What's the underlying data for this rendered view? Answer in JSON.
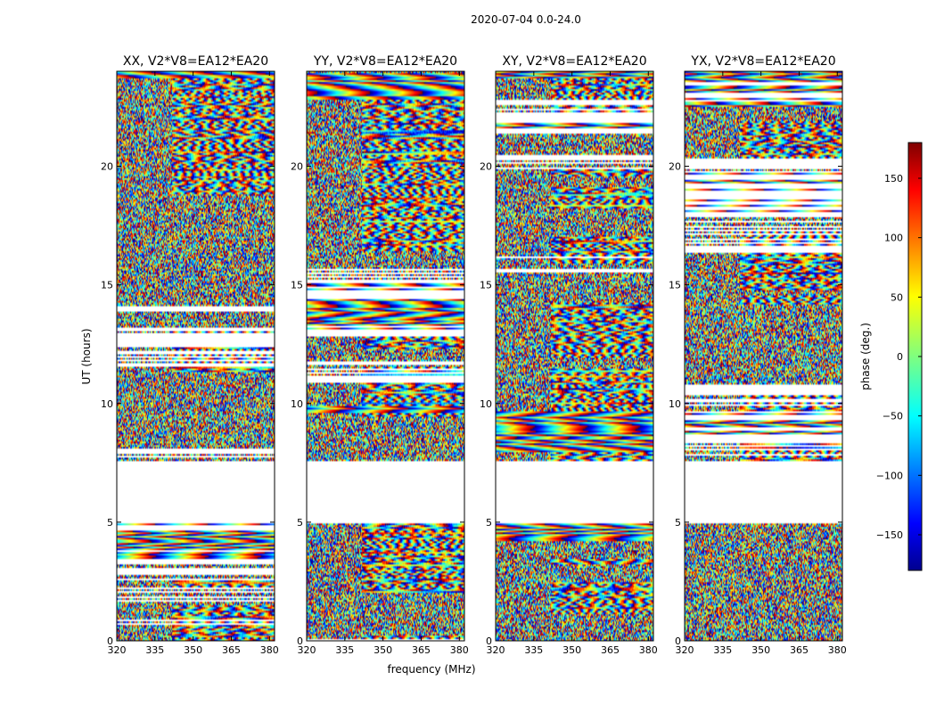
{
  "figure": {
    "suptitle": "2020-07-04 0.0-24.0",
    "xlabel": "frequency (MHz)",
    "ylabel": "UT (hours)",
    "colorbar_label": "phase (deg.)"
  },
  "chart_data": {
    "type": "heatmap",
    "title": "2020-07-04 0.0-24.0",
    "xlabel": "frequency (MHz)",
    "ylabel": "UT (hours)",
    "xlim": [
      320,
      382
    ],
    "ylim": [
      0,
      24
    ],
    "x_ticks": [
      "320",
      "335",
      "350",
      "365",
      "380"
    ],
    "x_tick_values": [
      320,
      335,
      350,
      365,
      380
    ],
    "y_ticks": [
      "0",
      "5",
      "10",
      "15",
      "20"
    ],
    "y_tick_values": [
      0,
      5,
      10,
      15,
      20
    ],
    "panels": [
      {
        "title": "XX, V2*V8=EA12*EA20",
        "pol": "XX"
      },
      {
        "title": "YY, V2*V8=EA12*EA20",
        "pol": "YY"
      },
      {
        "title": "XY, V2*V8=EA12*EA20",
        "pol": "XY"
      },
      {
        "title": "YX, V2*V8=EA12*EA20",
        "pol": "YX"
      }
    ],
    "color_scale": {
      "colormap": "jet",
      "range": [
        -180,
        180
      ],
      "label": "phase (deg.)",
      "ticks": [
        "150",
        "100",
        "50",
        "0",
        "−50",
        "−100",
        "−150"
      ],
      "tick_values": [
        150,
        100,
        50,
        0,
        -50,
        -100,
        -150
      ]
    },
    "data_gaps_hours": [
      [
        4.95,
        7.6
      ]
    ]
  }
}
